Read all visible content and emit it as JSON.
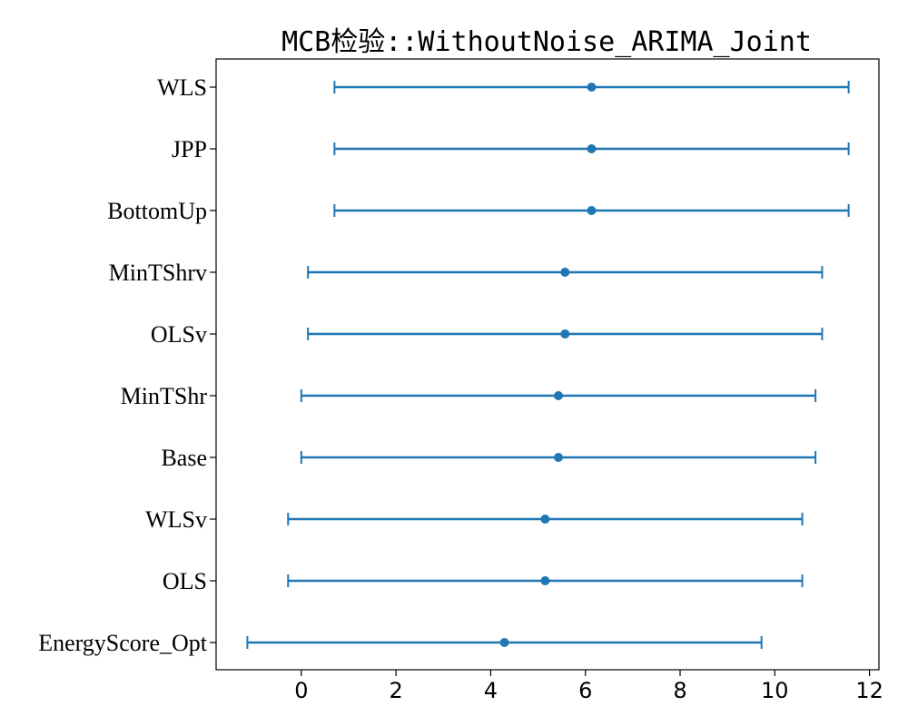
{
  "chart_data": {
    "type": "errorbar",
    "title": "MCB检验::WithoutNoise_ARIMA_Joint",
    "xlabel": "",
    "ylabel": "",
    "xlim": [
      -1.8,
      12.2
    ],
    "xticks": [
      0,
      2,
      4,
      6,
      8,
      10,
      12
    ],
    "grid": false,
    "color": "#1f77b4",
    "series": [
      {
        "label": "WLS",
        "center": 6.13,
        "lower": 0.7,
        "upper": 11.56
      },
      {
        "label": "JPP",
        "center": 6.13,
        "lower": 0.7,
        "upper": 11.56
      },
      {
        "label": "BottomUp",
        "center": 6.13,
        "lower": 0.7,
        "upper": 11.56
      },
      {
        "label": "MinTShrv",
        "center": 5.57,
        "lower": 0.14,
        "upper": 11.0
      },
      {
        "label": "OLSv",
        "center": 5.57,
        "lower": 0.14,
        "upper": 11.0
      },
      {
        "label": "MinTShr",
        "center": 5.43,
        "lower": 0.0,
        "upper": 10.86
      },
      {
        "label": "Base",
        "center": 5.43,
        "lower": 0.0,
        "upper": 10.86
      },
      {
        "label": "WLSv",
        "center": 5.15,
        "lower": -0.28,
        "upper": 10.58
      },
      {
        "label": "OLS",
        "center": 5.15,
        "lower": -0.28,
        "upper": 10.58
      },
      {
        "label": "EnergyScore_Opt",
        "center": 4.29,
        "lower": -1.14,
        "upper": 9.72
      }
    ]
  }
}
